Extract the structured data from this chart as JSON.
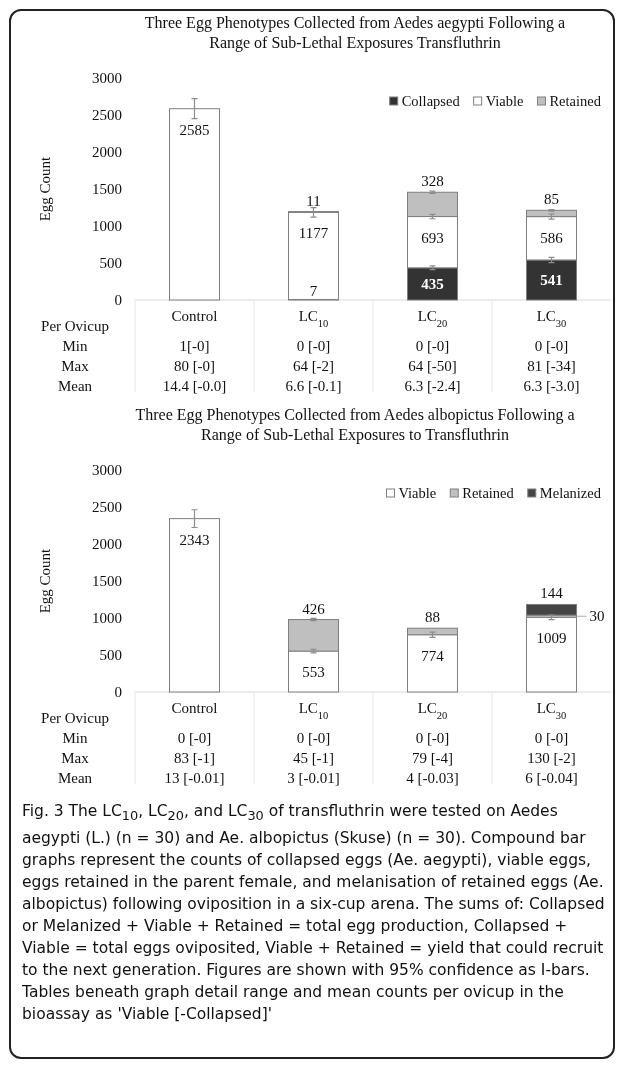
{
  "chart_data": [
    {
      "type": "bar",
      "stacked": true,
      "title": "Three Egg Phenotypes Collected from Aedes aegypti Following a Range of Sub-Lethal Exposures Transfluthrin",
      "ylabel": "Egg Count",
      "categories": [
        "Control",
        "LC$_{10}$",
        "LC$_{20}$",
        "LC$_{30}$"
      ],
      "ylim": [
        0,
        3000
      ],
      "yticks": [
        0,
        500,
        1000,
        1500,
        2000,
        2500,
        3000
      ],
      "legend": "top right",
      "data_labels": true,
      "series": [
        {
          "name": "Collapsed",
          "color": "#333333",
          "values": [
            null,
            7,
            435,
            541
          ],
          "errors": [
            null,
            null,
            25,
            35
          ]
        },
        {
          "name": "Viable",
          "color": "#ffffff",
          "values": [
            2585,
            1177,
            693,
            586
          ],
          "errors": [
            135,
            65,
            30,
            35
          ]
        },
        {
          "name": "Retained",
          "color": "#bfbfbf",
          "values": [
            null,
            11,
            328,
            85
          ],
          "errors": [
            null,
            null,
            15,
            10
          ]
        }
      ],
      "annotations": [
        "Per Ovicup",
        "Min",
        "1[-0]",
        "0 [-0]",
        "0 [-0]",
        "0 [-0]",
        "Max",
        "80 [-0]",
        "64 [-2]",
        "64 [-50]",
        "81 [-34]",
        "Mean",
        "14.4 [-0.0]",
        "6.6 [-0.1]",
        "6.3 [-2.4]",
        "6.3 [-3.0]"
      ]
    },
    {
      "type": "bar",
      "stacked": true,
      "title": "Three Egg Phenotypes Collected from Aedes albopictus Following a Range of Sub-Lethal Exposures to Transfluthrin",
      "ylabel": "Egg Count",
      "categories": [
        "Control",
        "LC$_{10}$",
        "LC$_{20}$",
        "LC$_{30}$"
      ],
      "ylim": [
        0,
        3000
      ],
      "yticks": [
        0,
        500,
        1000,
        1500,
        2000,
        2500,
        3000
      ],
      "legend": "top right",
      "data_labels": true,
      "series": [
        {
          "name": "Viable",
          "color": "#ffffff",
          "values": [
            2343,
            553,
            774,
            1009
          ],
          "errors": [
            120,
            25,
            35,
            30
          ]
        },
        {
          "name": "Retained",
          "color": "#bfbfbf",
          "values": [
            null,
            426,
            88,
            30
          ],
          "errors": [
            null,
            15,
            null,
            null
          ]
        },
        {
          "name": "Melanized",
          "color": "#444444",
          "values": [
            null,
            null,
            null,
            144
          ]
        }
      ],
      "annotations": [
        "Per Ovicup",
        "Min",
        "0 [-0]",
        "0 [-0]",
        "0 [-0]",
        "0 [-0]",
        "Max",
        "83 [-1]",
        "45 [-1]",
        "79 [-4]",
        "130 [-2]",
        "Mean",
        "13 [-0.01]",
        "3 [-0.01]",
        "4 [-0.03]",
        "6 [-0.04]",
        "Fig. 3 The LC$_{10}$, LC$_{20}$, and LC$_{30}$ of transfluthrin were tested on Aedes aegypti (L.) (n = 30) and Ae. albopictus (Skuse) (n = 30). Compound bar graphs represent the counts of collapsed eggs (Ae. aegypti), viable eggs, eggs retained in the parent female, and melanisation of retained eggs (Ae. albopictus) following oviposition in a six-cup arena. The sums of: Collapsed or Melanized + Viable + Retained = total egg production, Collapsed + Viable = total eggs oviposited, Viable + Retained = yield that could recruit to the next generation. Figures are shown with 95% confidence as I-bars. Tables beneath graph detail range and mean counts per ovicup in the bioassay as 'Viable [-Collapsed]'"
      ]
    }
  ]
}
